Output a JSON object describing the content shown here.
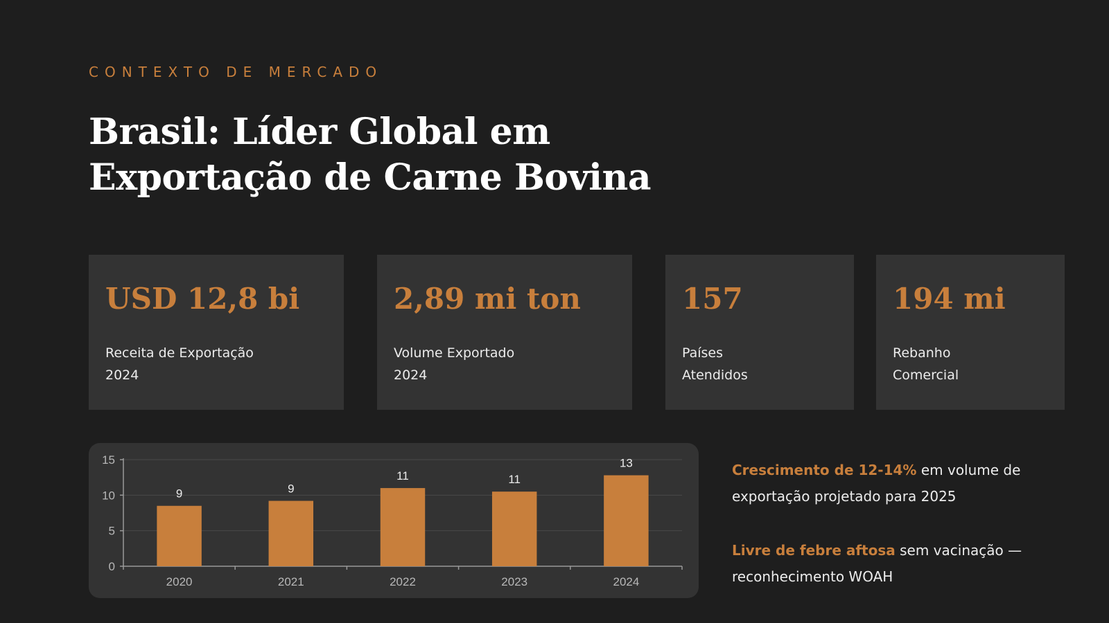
{
  "eyebrow": "CONTEXTO DE MERCADO",
  "title": {
    "line1": "Brasil: Líder Global em",
    "line2": "Exportação de Carne Bovina"
  },
  "stats": [
    {
      "value": "USD 12,8 bi",
      "label_line1": "Receita de Exportação",
      "label_line2": "2024"
    },
    {
      "value": "2,89 mi ton",
      "label_line1": "Volume Exportado",
      "label_line2": "2024"
    },
    {
      "value": "157",
      "label_line1": "Países",
      "label_line2": "Atendidos"
    },
    {
      "value": "194 mi",
      "label_line1": "Rebanho",
      "label_line2": "Comercial"
    }
  ],
  "notes": [
    {
      "highlight": "Crescimento de 12-14%",
      "text": " em volume de exportação projetado para 2025"
    },
    {
      "highlight": "Livre de febre aftosa",
      "text": " sem vacinação — reconhecimento WOAH"
    }
  ],
  "colors": {
    "background": "#1e1e1e",
    "card": "#333333",
    "accent": "#c87f3c",
    "text": "#ffffff"
  },
  "chart_data": {
    "type": "bar",
    "categories": [
      "2020",
      "2021",
      "2022",
      "2023",
      "2024"
    ],
    "values": [
      8.5,
      9.2,
      11.0,
      10.5,
      12.8
    ],
    "data_labels": [
      "9",
      "9",
      "11",
      "11",
      "13"
    ],
    "ylim": [
      0,
      15
    ],
    "yticks": [
      0,
      5,
      10,
      15
    ],
    "grid": true,
    "legend": "none",
    "bar_color": "#c87f3c"
  }
}
